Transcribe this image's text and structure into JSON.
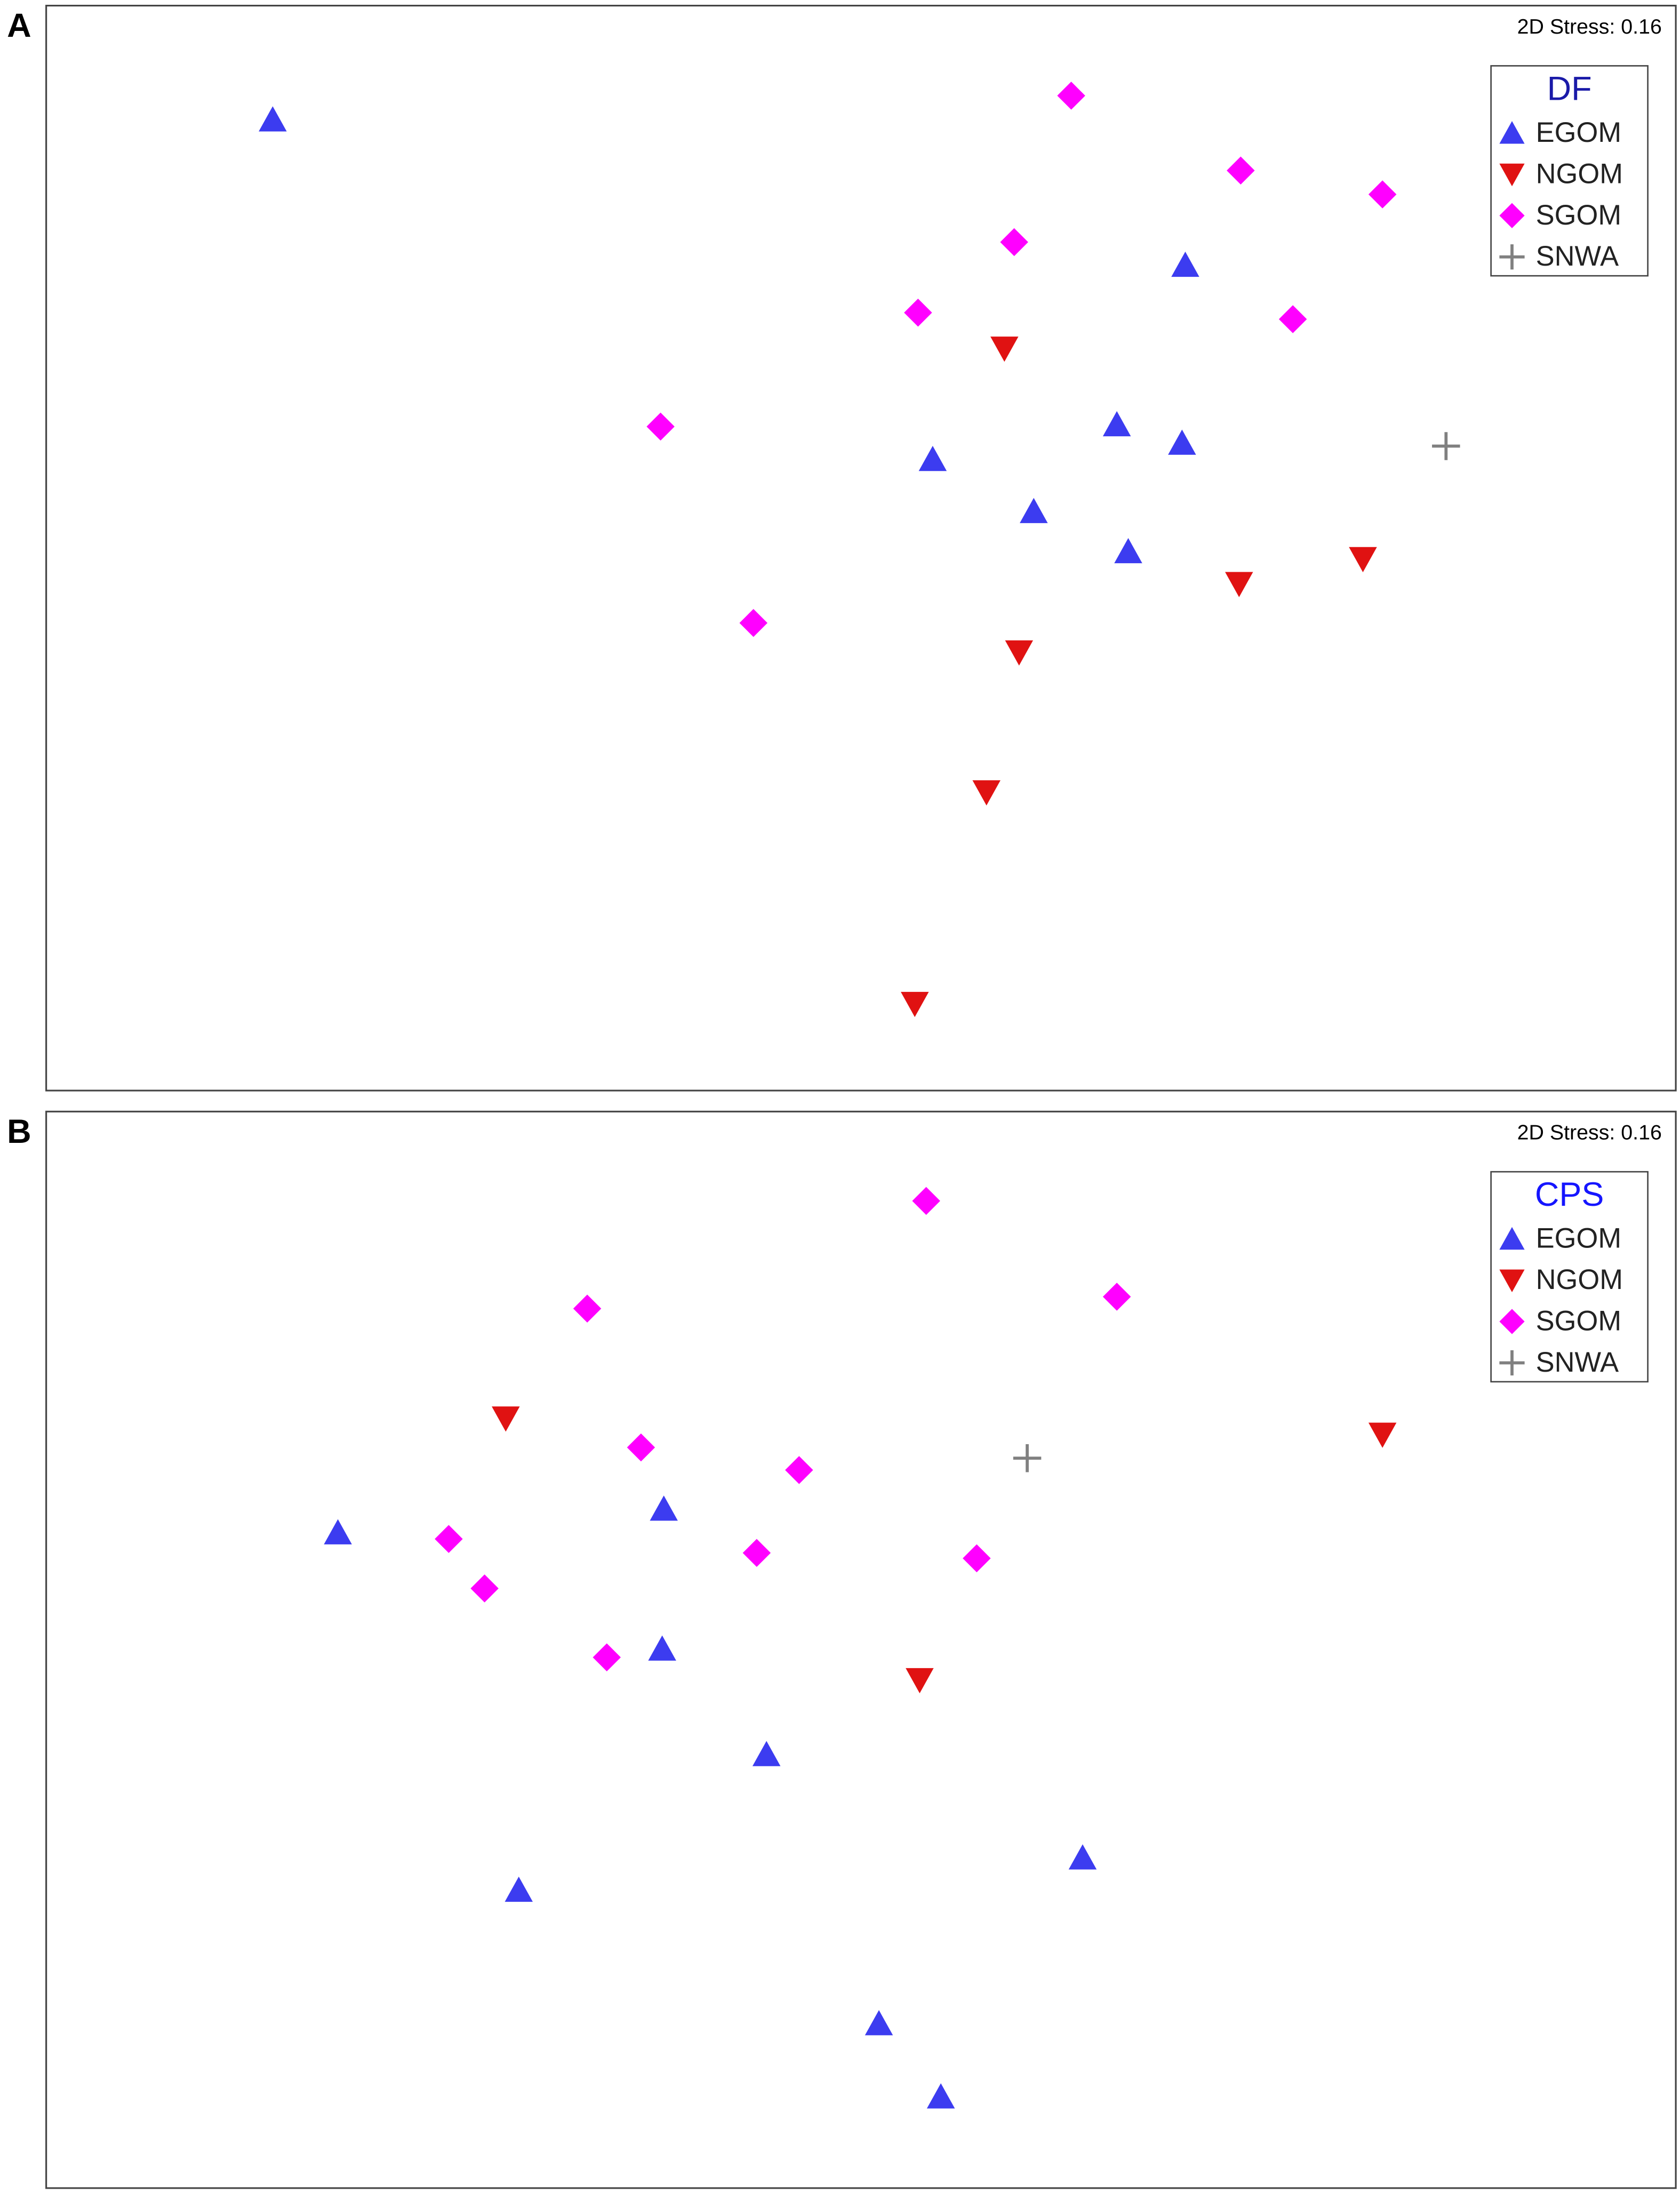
{
  "chart_data": [
    {
      "type": "scatter",
      "label": "A",
      "annotation": "2D Stress: 0.16",
      "legend_title": "DF",
      "legend_title_color": "#1a1aa8",
      "legend_position": "top-right",
      "xlim": [
        0,
        100
      ],
      "ylim": [
        0,
        100
      ],
      "series": [
        {
          "name": "EGOM",
          "color": "#3c3cf0",
          "marker": "triangle-up",
          "x": [
            13.9,
            69.9,
            65.7,
            69.7,
            54.4,
            60.6,
            66.4
          ],
          "y": [
            89.5,
            76.1,
            61.4,
            59.7,
            58.2,
            53.4,
            49.7
          ]
        },
        {
          "name": "NGOM",
          "color": "#e01212",
          "marker": "triangle-down",
          "x": [
            58.8,
            80.8,
            73.2,
            59.7,
            57.7,
            53.3
          ],
          "y": [
            68.4,
            49.0,
            46.7,
            40.4,
            27.5,
            8.0
          ]
        },
        {
          "name": "SGOM",
          "color": "#ff00ff",
          "marker": "diamond",
          "x": [
            62.9,
            73.3,
            82.0,
            59.4,
            53.5,
            76.5,
            37.7,
            43.4
          ],
          "y": [
            91.7,
            84.8,
            82.6,
            78.2,
            71.7,
            71.1,
            61.2,
            43.1
          ]
        },
        {
          "name": "SNWA",
          "color": "#808080",
          "marker": "plus",
          "x": [
            85.9
          ],
          "y": [
            59.4
          ]
        }
      ]
    },
    {
      "type": "scatter",
      "label": "B",
      "annotation": "2D Stress: 0.16",
      "legend_title": "CPS",
      "legend_title_color": "#1515ff",
      "legend_position": "top-right",
      "xlim": [
        0,
        100
      ],
      "ylim": [
        0,
        100
      ],
      "series": [
        {
          "name": "EGOM",
          "color": "#3c3cf0",
          "marker": "triangle-up",
          "x": [
            17.9,
            37.9,
            37.8,
            44.2,
            63.6,
            29.0,
            51.1,
            54.9
          ],
          "y": [
            60.9,
            63.1,
            50.1,
            40.3,
            30.7,
            27.7,
            15.3,
            8.5
          ]
        },
        {
          "name": "NGOM",
          "color": "#e01212",
          "marker": "triangle-down",
          "x": [
            28.2,
            82.0,
            53.6
          ],
          "y": [
            71.5,
            70.0,
            47.2
          ]
        },
        {
          "name": "SGOM",
          "color": "#ff00ff",
          "marker": "diamond",
          "x": [
            54.0,
            33.2,
            65.7,
            36.5,
            46.2,
            24.7,
            26.9,
            43.6,
            57.1,
            34.4
          ],
          "y": [
            91.7,
            81.7,
            82.8,
            68.8,
            66.7,
            60.3,
            55.7,
            59.0,
            58.5,
            49.3
          ]
        },
        {
          "name": "SNWA",
          "color": "#808080",
          "marker": "plus",
          "x": [
            60.2
          ],
          "y": [
            67.8
          ]
        }
      ]
    }
  ]
}
